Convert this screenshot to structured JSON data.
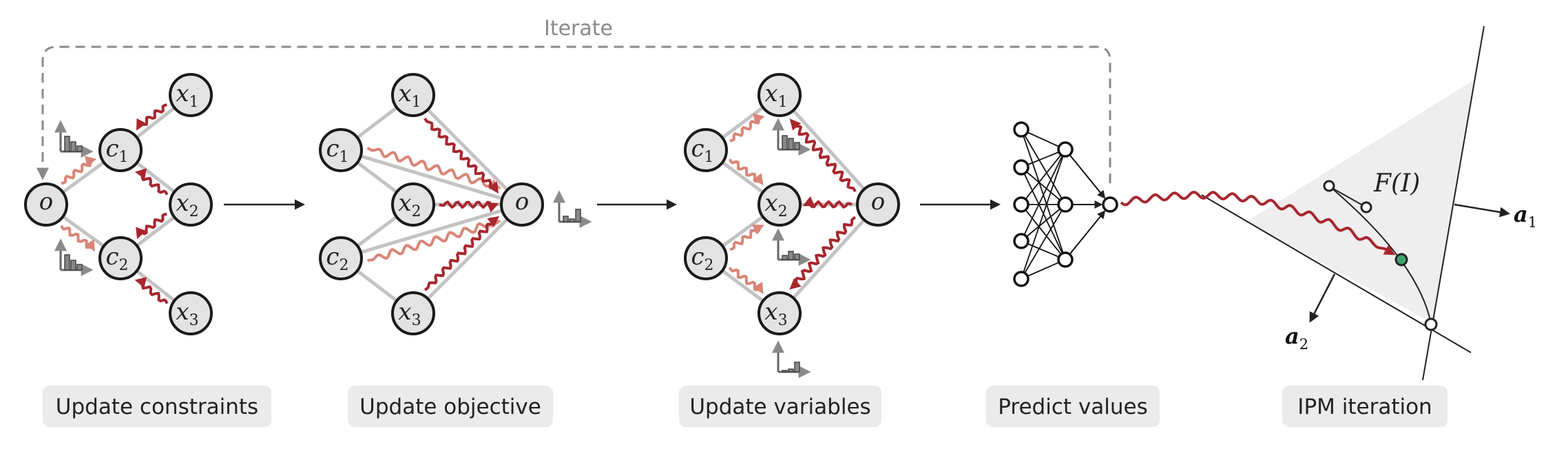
{
  "iterate_label": "Iterate",
  "captions": {
    "update_constraints": "Update constraints",
    "update_objective": "Update objective",
    "update_variables": "Update variables",
    "predict_values": "Predict values",
    "ipm_iteration": "IPM iteration"
  },
  "node_labels": {
    "objective": "o",
    "constraint": "c",
    "variable": "x"
  },
  "node_indices": [
    "1",
    "2",
    "3"
  ],
  "ipm": {
    "feasible_region_label": "F(I)",
    "vector_1": "a",
    "vector_1_index": "1",
    "vector_2": "a",
    "vector_2_index": "2"
  },
  "colors": {
    "message_dark": "#a8262e",
    "message_light": "#d98577",
    "edge_gray": "#c3c3c3",
    "node_fill": "#e3e3e3",
    "iterate_gray": "#8a8a8a",
    "highlight_point": "#3da36b",
    "region_fill": "#eeeeee"
  }
}
